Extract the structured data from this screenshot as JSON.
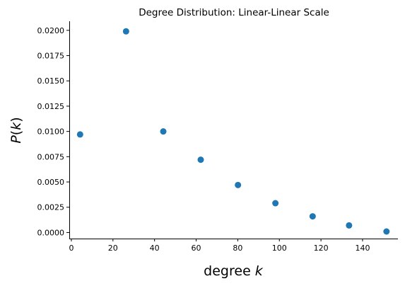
{
  "chart_data": {
    "type": "scatter",
    "title": "Degree Distribution: Linear-Linear Scale",
    "xlabel_text": "degree ",
    "xlabel_var": "k",
    "ylabel_var_p": "P",
    "ylabel_open": "(",
    "ylabel_var_k": "k",
    "ylabel_close": ")",
    "xlim": [
      -1,
      157
    ],
    "ylim": [
      -0.0006,
      0.0209
    ],
    "xticks": [
      0,
      20,
      40,
      60,
      80,
      100,
      120,
      140
    ],
    "xtick_labels": [
      "0",
      "20",
      "40",
      "60",
      "80",
      "100",
      "120",
      "140"
    ],
    "yticks": [
      0.0,
      0.0025,
      0.005,
      0.0075,
      0.01,
      0.0125,
      0.015,
      0.0175,
      0.02
    ],
    "ytick_labels": [
      "0.0000",
      "0.0025",
      "0.0050",
      "0.0075",
      "0.0100",
      "0.0125",
      "0.0150",
      "0.0175",
      "0.0200"
    ],
    "grid": false,
    "marker_color": "#1f77b4",
    "x": [
      4.2,
      26.3,
      44.2,
      62.2,
      80.1,
      98.1,
      116.0,
      133.5,
      151.5
    ],
    "y": [
      0.0097,
      0.0199,
      0.01,
      0.0072,
      0.0047,
      0.0029,
      0.0016,
      0.0007,
      0.0001
    ]
  }
}
